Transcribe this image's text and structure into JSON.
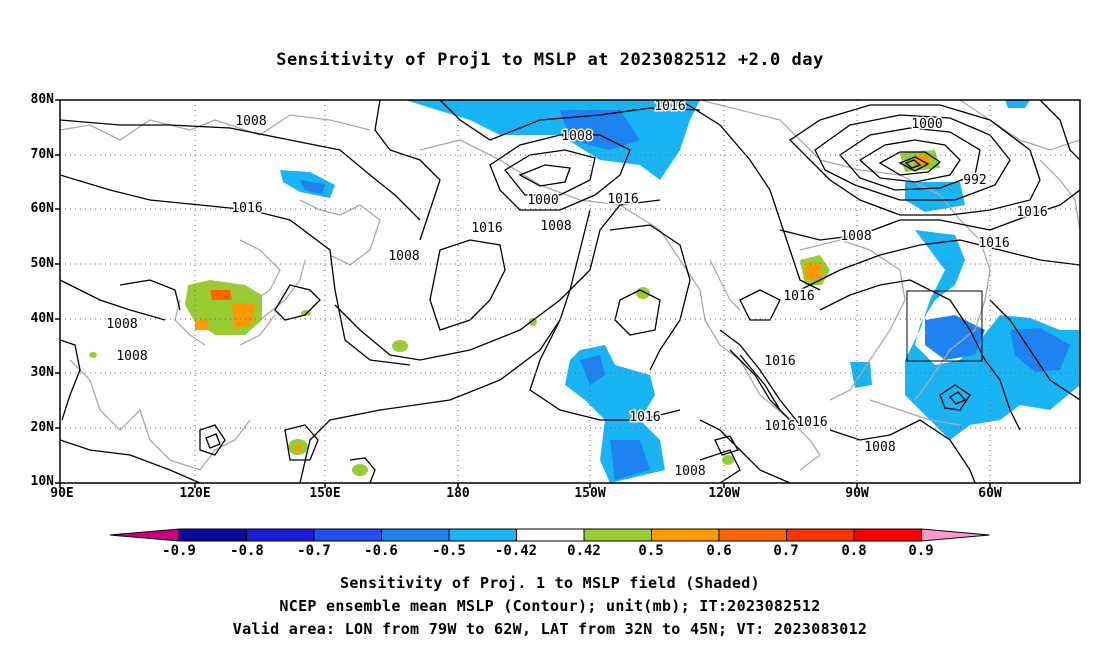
{
  "title": "Sensitivity of Proj1 to MSLP at 2023082512 +2.0 day",
  "map": {
    "lat_labels": [
      "80N",
      "70N",
      "60N",
      "50N",
      "40N",
      "30N",
      "20N",
      "10N"
    ],
    "lon_labels": [
      "90E",
      "120E",
      "150E",
      "180",
      "150W",
      "120W",
      "90W",
      "60W"
    ],
    "lat_range": [
      10,
      80
    ],
    "lon_range_east": [
      90,
      310
    ],
    "gridlines": "dotted",
    "coastline_color": "#aaaaaa",
    "contour_color": "#000000",
    "contour_labels": [
      "1008",
      "1016",
      "1008",
      "1016",
      "1008",
      "1016",
      "1008",
      "1000",
      "1008",
      "1016",
      "1016",
      "1016",
      "1000",
      "992",
      "1016",
      "1008",
      "1016",
      "1016",
      "1016",
      "1016",
      "1008",
      "1008",
      "1008",
      "1016"
    ],
    "valid_box": {
      "lon": [
        -79,
        -62
      ],
      "lat": [
        32,
        45
      ]
    }
  },
  "colorbar": {
    "labels": [
      "-0.9",
      "-0.8",
      "-0.7",
      "-0.6",
      "-0.5",
      "-0.42",
      "0.42",
      "0.5",
      "0.6",
      "0.7",
      "0.8",
      "0.9"
    ],
    "colors": [
      "#0a0aa0",
      "#1c1cdc",
      "#2250f0",
      "#1e82f0",
      "#18b4f4",
      "#ffffff",
      "#99cc33",
      "#ff9900",
      "#ff6600",
      "#ff3300",
      "#ff0000"
    ],
    "end_low_color": "#c8007d",
    "end_high_color": "#ff99cc"
  },
  "captions": [
    "Sensitivity of Proj. 1 to MSLP field (Shaded)",
    "NCEP ensemble mean MSLP (Contour); unit(mb); IT:2023082512",
    "Valid area: LON from 79W to 62W, LAT from 32N to 45N; VT: 2023083012"
  ]
}
